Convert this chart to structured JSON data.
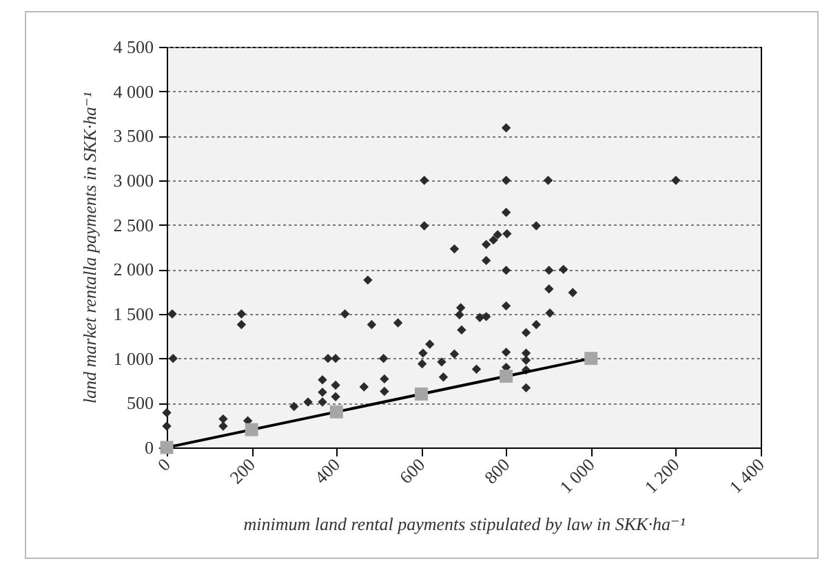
{
  "chart_data": {
    "type": "scatter",
    "xlabel": "minimum land rental payments stipulated by law in SKK·ha⁻¹",
    "ylabel": "land market rentalla payments in SKK·ha⁻¹",
    "xlim": [
      0,
      1400
    ],
    "xticks": [
      0,
      200,
      400,
      600,
      800,
      {
        "value": 1000,
        "label": "1 000"
      },
      {
        "value": 1200,
        "label": "1 200"
      },
      {
        "value": 1400,
        "label": "1 400"
      }
    ],
    "ylim": [
      0,
      4500
    ],
    "yticks": [
      0,
      500,
      {
        "value": 1000,
        "label": "1 000"
      },
      {
        "value": 1500,
        "label": "1 500"
      },
      {
        "value": 2000,
        "label": "2 000"
      },
      {
        "value": 2500,
        "label": "2 500"
      },
      {
        "value": 3000,
        "label": "3 000"
      },
      {
        "value": 3500,
        "label": "3 500"
      },
      {
        "value": 4000,
        "label": "4 000"
      },
      {
        "value": 4500,
        "label": "4 500"
      }
    ],
    "grid": "y",
    "marker": "diamond",
    "series": [
      {
        "color": "#2b2b2b",
        "x": [
          0,
          0,
          13,
          15,
          133,
          133,
          176,
          176,
          191,
          300,
          333,
          367,
          367,
          367,
          380,
          398,
          398,
          398,
          420,
          465,
          474,
          483,
          511,
          513,
          513,
          545,
          607,
          607,
          604,
          602,
          620,
          648,
          652,
          678,
          678,
          693,
          690,
          695,
          730,
          738,
          753,
          753,
          753,
          770,
          780,
          802,
          800,
          800,
          800,
          800,
          800,
          800,
          800,
          847,
          847,
          847,
          847,
          847,
          871,
          871,
          899,
          901,
          901,
          903,
          935,
          957,
          1200
        ],
        "values": [
          240,
          390,
          1500,
          1000,
          320,
          240,
          1500,
          1380,
          300,
          460,
          510,
          760,
          620,
          510,
          1000,
          1000,
          700,
          570,
          1500,
          680,
          1880,
          1380,
          1000,
          770,
          630,
          1400,
          3000,
          2490,
          1060,
          940,
          1160,
          960,
          790,
          2230,
          1050,
          1570,
          1490,
          1320,
          880,
          1460,
          1470,
          2100,
          2280,
          2330,
          2390,
          2400,
          2640,
          3000,
          3590,
          1990,
          1590,
          1070,
          900,
          1290,
          1060,
          980,
          870,
          670,
          1380,
          2490,
          3000,
          1990,
          1780,
          1510,
          2000,
          1740,
          3000
        ]
      },
      {
        "type": "line",
        "color": "#000000",
        "marker": "none",
        "x": [
          0,
          1000
        ],
        "values": [
          0,
          1000
        ]
      },
      {
        "color": "#a6a6a6",
        "marker": "square",
        "x": [
          0,
          200,
          400,
          600,
          800,
          1000
        ],
        "values": [
          0,
          200,
          400,
          600,
          800,
          1000
        ]
      }
    ]
  }
}
